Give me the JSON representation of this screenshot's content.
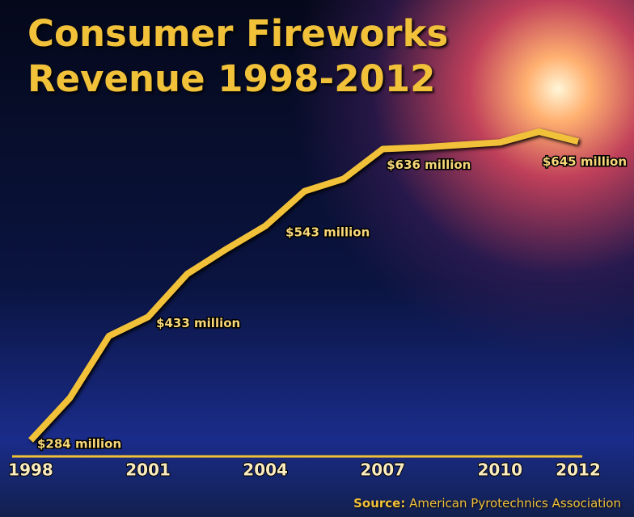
{
  "chart_data": {
    "type": "line",
    "title": "Consumer Fireworks Revenue 1998-2012",
    "x": [
      1998,
      1999,
      2000,
      2001,
      2002,
      2003,
      2004,
      2005,
      2006,
      2007,
      2008,
      2009,
      2010,
      2011,
      2012
    ],
    "series": [
      {
        "color": "#f2c13a",
        "values": [
          284,
          335,
          410,
          433,
          485,
          515,
          543,
          585,
          600,
          636,
          638,
          641,
          644,
          657,
          645
        ],
        "value_labels": [
          "$284 million",
          null,
          null,
          "$433 million",
          null,
          null,
          "$543 million",
          null,
          null,
          "$636 million",
          null,
          null,
          null,
          null,
          "$645 million"
        ]
      }
    ],
    "xlim": [
      1998,
      2012
    ],
    "xticks": [
      1998,
      2001,
      2004,
      2007,
      2010,
      2012
    ],
    "source_label": "Source:",
    "source": "American Pyrotechnics Association"
  }
}
